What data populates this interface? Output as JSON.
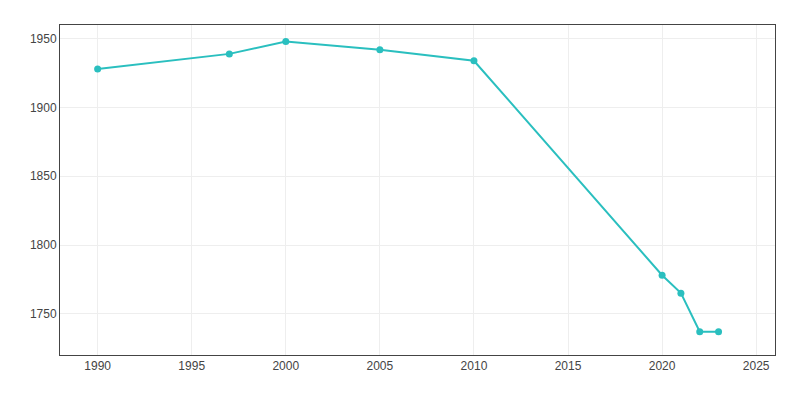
{
  "chart_data": {
    "type": "line",
    "x": [
      1990,
      1997,
      2000,
      2005,
      2010,
      2020,
      2021,
      2022,
      2023
    ],
    "values": [
      1928,
      1939,
      1948,
      1942,
      1934,
      1778,
      1765,
      1737,
      1737
    ],
    "color": "#2abfbf",
    "marker": "circle",
    "xlim": [
      1988,
      2026
    ],
    "ylim": [
      1720,
      1960
    ],
    "xticks": [
      1990,
      1995,
      2000,
      2005,
      2010,
      2015,
      2020,
      2025
    ],
    "yticks": [
      1750,
      1800,
      1850,
      1900,
      1950
    ],
    "grid": true
  }
}
